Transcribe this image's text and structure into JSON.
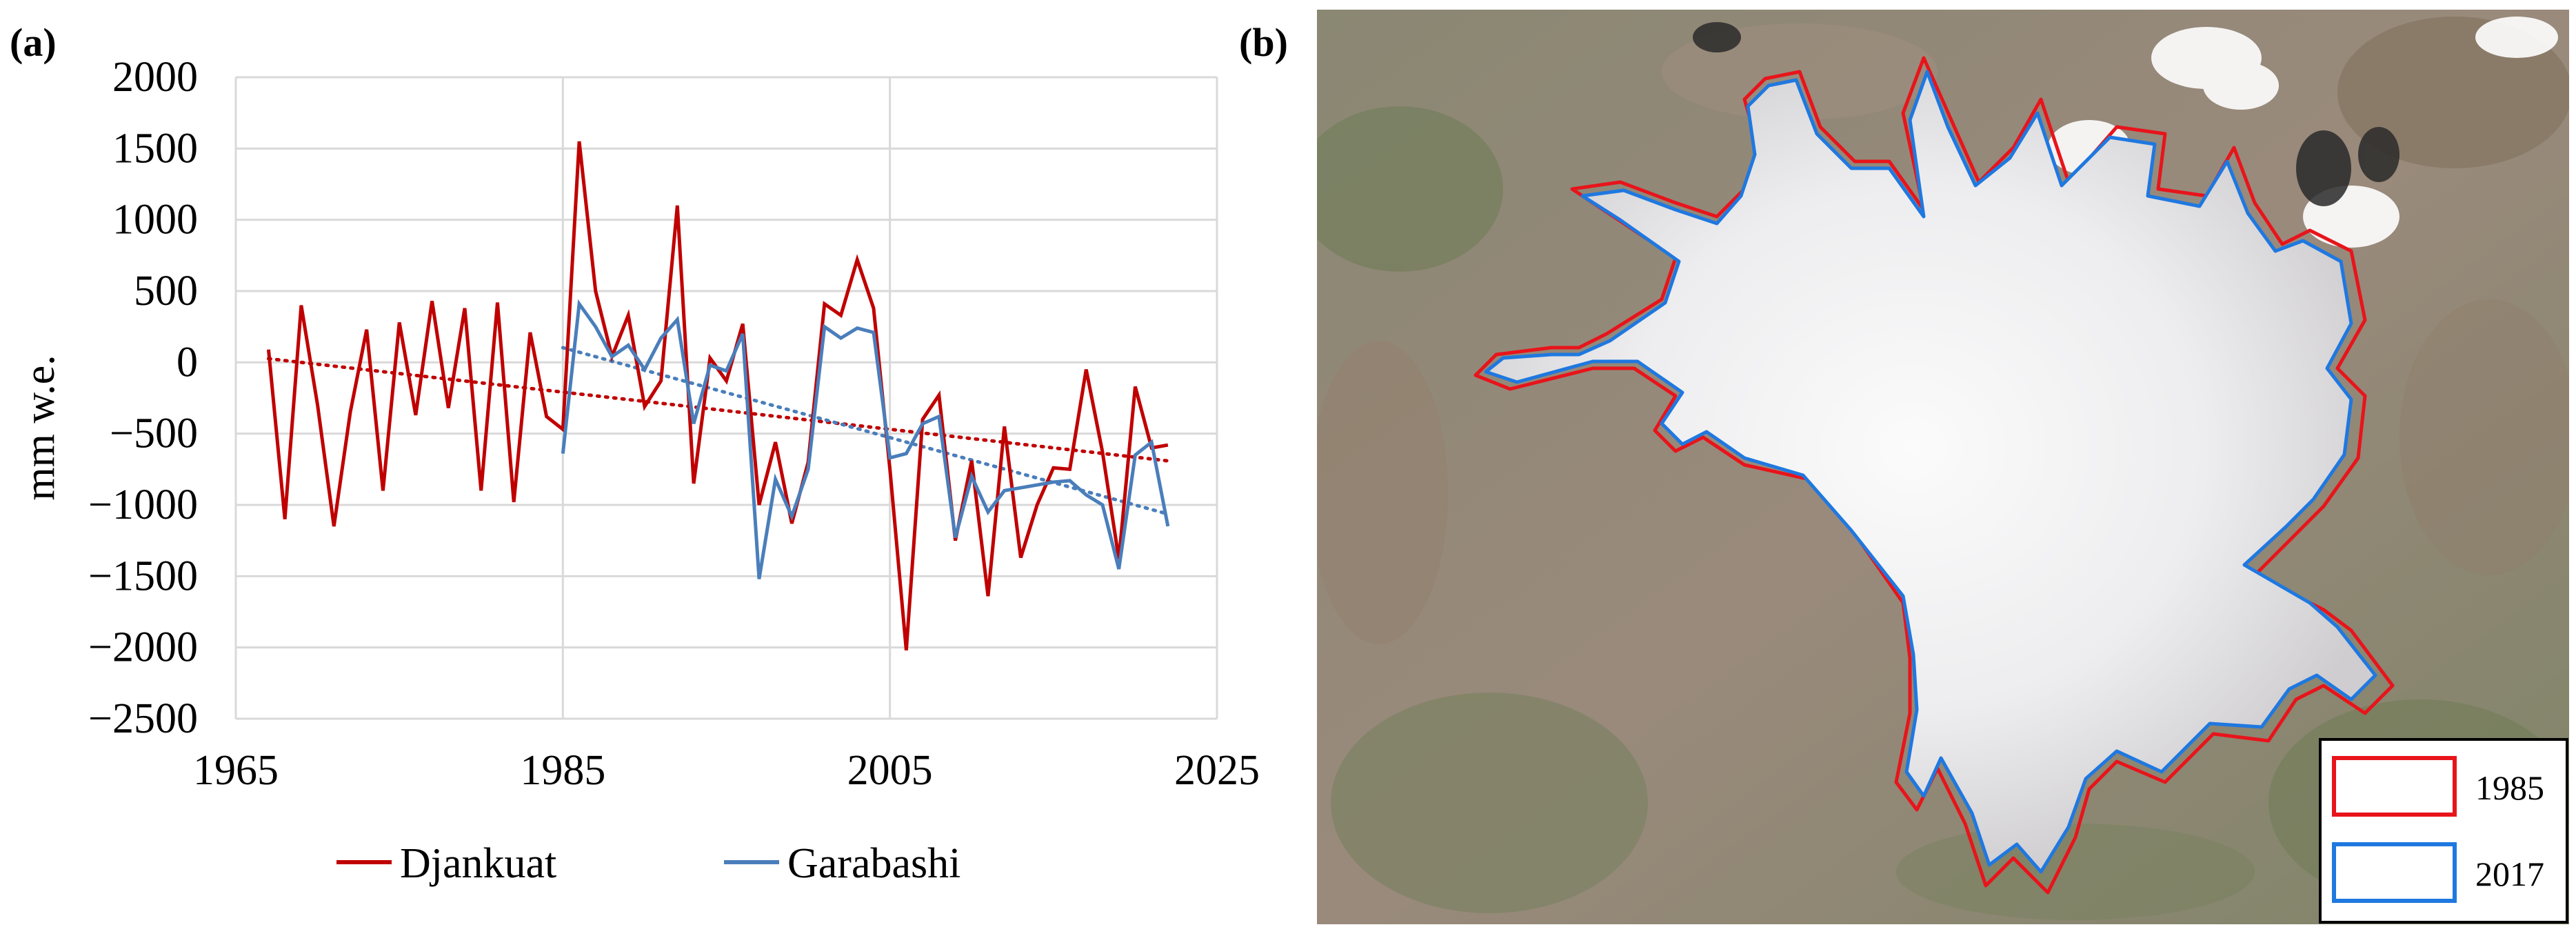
{
  "panels": {
    "a_label": "(a)",
    "b_label": "(b)"
  },
  "chart_data": {
    "type": "line",
    "title": "",
    "xlabel": "",
    "ylabel": "mm w.e.",
    "xlim": [
      1965,
      2025
    ],
    "ylim": [
      -2500,
      2000
    ],
    "xticks": [
      1965,
      1985,
      2005,
      2025
    ],
    "yticks": [
      2000,
      1500,
      1000,
      500,
      0,
      -500,
      -1000,
      -1500,
      -2000,
      -2500
    ],
    "ytick_labels": [
      "2000",
      "1500",
      "1000",
      "500",
      "0",
      "−500",
      "−1000",
      "−1500",
      "−2000",
      "−2500"
    ],
    "xtick_labels": [
      "1965",
      "1985",
      "2005",
      "2025"
    ],
    "grid": true,
    "legend_position": "bottom",
    "series": [
      {
        "name": "Djankuat",
        "color": "#c00000",
        "trendline": true,
        "x": [
          1967,
          1968,
          1969,
          1970,
          1971,
          1972,
          1973,
          1974,
          1975,
          1976,
          1977,
          1978,
          1979,
          1980,
          1981,
          1982,
          1983,
          1984,
          1985,
          1986,
          1987,
          1988,
          1989,
          1990,
          1991,
          1992,
          1993,
          1994,
          1995,
          1996,
          1997,
          1998,
          1999,
          2000,
          2001,
          2002,
          2003,
          2004,
          2005,
          2006,
          2007,
          2008,
          2009,
          2010,
          2011,
          2012,
          2013,
          2014,
          2015,
          2016,
          2017,
          2018,
          2019,
          2020,
          2021,
          2022
        ],
        "values": [
          90,
          -1100,
          400,
          -300,
          -1150,
          -350,
          230,
          -900,
          280,
          -370,
          430,
          -320,
          380,
          -900,
          420,
          -980,
          210,
          -380,
          -470,
          1550,
          500,
          40,
          330,
          -310,
          -130,
          1100,
          -850,
          30,
          -130,
          270,
          -1000,
          -560,
          -1130,
          -700,
          410,
          330,
          720,
          380,
          -750,
          -2020,
          -400,
          -230,
          -1250,
          -690,
          -1640,
          -450,
          -1370,
          -1000,
          -740,
          -750,
          -50,
          -630,
          -1380,
          -170,
          -600,
          -580
        ],
        "note_values_are_read_off_chart": true
      },
      {
        "name": "Garabashi",
        "color": "#4a7ebb",
        "trendline": true,
        "x": [
          1985,
          1986,
          1987,
          1988,
          1989,
          1990,
          1991,
          1992,
          1993,
          1994,
          1995,
          1996,
          1997,
          1998,
          1999,
          2000,
          2001,
          2002,
          2003,
          2004,
          2005,
          2006,
          2007,
          2008,
          2009,
          2010,
          2011,
          2012,
          2013,
          2014,
          2015,
          2016,
          2017,
          2018,
          2019,
          2020,
          2021,
          2022
        ],
        "values": [
          -640,
          410,
          250,
          40,
          120,
          -50,
          170,
          300,
          -430,
          -20,
          -60,
          200,
          -1520,
          -820,
          -1080,
          -750,
          250,
          170,
          240,
          210,
          -670,
          -640,
          -430,
          -380,
          -1230,
          -800,
          -1050,
          -900,
          -880,
          -860,
          -840,
          -830,
          -930,
          -1000,
          -1450,
          -650,
          -560,
          -1150
        ]
      }
    ]
  },
  "map": {
    "legend": [
      {
        "label": "1985",
        "color": "#e8141b"
      },
      {
        "label": "2017",
        "color": "#1f78e0"
      }
    ]
  }
}
